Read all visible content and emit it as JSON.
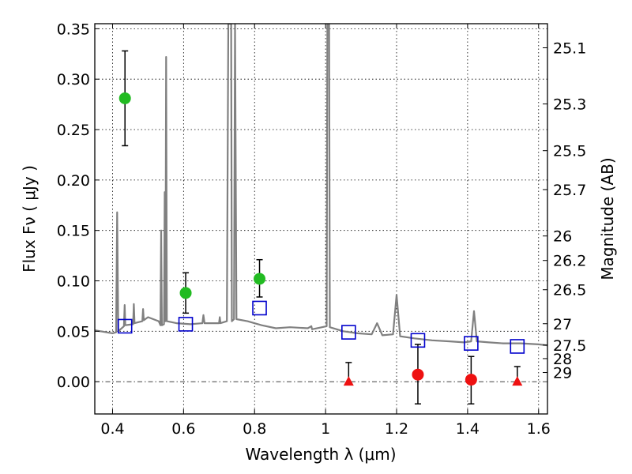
{
  "chart_data": {
    "type": "scatter",
    "title": "",
    "xlabel": "Wavelength  λ (μm)",
    "ylabel": "Flux  Fν  ( μJy )",
    "y2label": "Magnitude (AB)",
    "xlim": [
      0.35,
      1.625
    ],
    "ylim": [
      -0.032,
      0.355
    ],
    "grid": true,
    "legend": "none",
    "x_ticks": [
      0.4,
      0.6,
      0.8,
      1.0,
      1.2,
      1.4,
      1.6
    ],
    "x_tick_labels": [
      "0.4",
      "0.6",
      "0.8",
      "1",
      "1.2",
      "1.4",
      "1.6"
    ],
    "y_ticks": [
      0.0,
      0.05,
      0.1,
      0.15,
      0.2,
      0.25,
      0.3,
      0.35
    ],
    "y_tick_labels": [
      "0.00",
      "0.05",
      "0.10",
      "0.15",
      "0.20",
      "0.25",
      "0.30",
      "0.35"
    ],
    "y2_ticks": [
      {
        "label": "25.1",
        "flux": 0.3311
      },
      {
        "label": "25.3",
        "flux": 0.2754
      },
      {
        "label": "25.5",
        "flux": 0.2291
      },
      {
        "label": "25.7",
        "flux": 0.1905
      },
      {
        "label": "26",
        "flux": 0.1445
      },
      {
        "label": "26.2",
        "flux": 0.1202
      },
      {
        "label": "26.5",
        "flux": 0.0912
      },
      {
        "label": "27",
        "flux": 0.0575
      },
      {
        "label": "27.5",
        "flux": 0.0363
      },
      {
        "label": "28",
        "flux": 0.0229
      },
      {
        "label": "29",
        "flux": 0.0091
      }
    ],
    "colors": {
      "model": "#808080",
      "model_photometry": "#0000cc",
      "detections": "#22bb22",
      "low_snr": "#ee1111",
      "upper_limits": "#ee1111",
      "error_bars": "#000000"
    },
    "series": [
      {
        "marker": "circle",
        "color": "#22bb22",
        "points": [
          {
            "x": 0.435,
            "y": 0.281,
            "ylow": 0.234,
            "yhigh": 0.328
          },
          {
            "x": 0.606,
            "y": 0.088,
            "ylow": 0.068,
            "yhigh": 0.108
          },
          {
            "x": 0.814,
            "y": 0.102,
            "ylow": 0.084,
            "yhigh": 0.121
          }
        ]
      },
      {
        "marker": "circle",
        "color": "#ee1111",
        "points": [
          {
            "x": 1.26,
            "y": 0.007,
            "ylow": -0.022,
            "yhigh": 0.037
          },
          {
            "x": 1.41,
            "y": 0.002,
            "ylow": -0.022,
            "yhigh": 0.025
          }
        ]
      },
      {
        "marker": "triangle",
        "color": "#ee1111",
        "points": [
          {
            "x": 1.065,
            "y": 0.0,
            "ylow": 0.0,
            "yhigh": 0.019
          },
          {
            "x": 1.54,
            "y": 0.0,
            "ylow": 0.0,
            "yhigh": 0.015
          }
        ]
      },
      {
        "marker": "open-square",
        "color": "#0000cc",
        "points": [
          {
            "x": 0.435,
            "y": 0.055
          },
          {
            "x": 0.606,
            "y": 0.057
          },
          {
            "x": 0.814,
            "y": 0.073
          },
          {
            "x": 1.065,
            "y": 0.049
          },
          {
            "x": 1.26,
            "y": 0.041
          },
          {
            "x": 1.41,
            "y": 0.038
          },
          {
            "x": 1.54,
            "y": 0.035
          }
        ]
      },
      {
        "marker": "line",
        "color": "#808080",
        "points": [
          {
            "x": 0.35,
            "y": 0.051
          },
          {
            "x": 0.4,
            "y": 0.048
          },
          {
            "x": 0.41,
            "y": 0.049
          },
          {
            "x": 0.413,
            "y": 0.168
          },
          {
            "x": 0.416,
            "y": 0.05
          },
          {
            "x": 0.432,
            "y": 0.055
          },
          {
            "x": 0.434,
            "y": 0.076
          },
          {
            "x": 0.436,
            "y": 0.056
          },
          {
            "x": 0.458,
            "y": 0.057
          },
          {
            "x": 0.46,
            "y": 0.077
          },
          {
            "x": 0.462,
            "y": 0.058
          },
          {
            "x": 0.484,
            "y": 0.06
          },
          {
            "x": 0.486,
            "y": 0.072
          },
          {
            "x": 0.488,
            "y": 0.061
          },
          {
            "x": 0.5,
            "y": 0.064
          },
          {
            "x": 0.53,
            "y": 0.06
          },
          {
            "x": 0.535,
            "y": 0.056
          },
          {
            "x": 0.537,
            "y": 0.15
          },
          {
            "x": 0.539,
            "y": 0.056
          },
          {
            "x": 0.545,
            "y": 0.057
          },
          {
            "x": 0.547,
            "y": 0.188
          },
          {
            "x": 0.549,
            "y": 0.06
          },
          {
            "x": 0.551,
            "y": 0.322
          },
          {
            "x": 0.553,
            "y": 0.06
          },
          {
            "x": 0.58,
            "y": 0.058
          },
          {
            "x": 0.62,
            "y": 0.057
          },
          {
            "x": 0.653,
            "y": 0.058
          },
          {
            "x": 0.656,
            "y": 0.066
          },
          {
            "x": 0.659,
            "y": 0.058
          },
          {
            "x": 0.7,
            "y": 0.058
          },
          {
            "x": 0.702,
            "y": 0.064
          },
          {
            "x": 0.704,
            "y": 0.058
          },
          {
            "x": 0.722,
            "y": 0.06
          },
          {
            "x": 0.726,
            "y": 0.355
          },
          {
            "x": 0.734,
            "y": 0.355
          },
          {
            "x": 0.736,
            "y": 0.06
          },
          {
            "x": 0.742,
            "y": 0.062
          },
          {
            "x": 0.745,
            "y": 0.355
          },
          {
            "x": 0.749,
            "y": 0.062
          },
          {
            "x": 0.78,
            "y": 0.06
          },
          {
            "x": 0.82,
            "y": 0.056
          },
          {
            "x": 0.86,
            "y": 0.053
          },
          {
            "x": 0.9,
            "y": 0.054
          },
          {
            "x": 0.95,
            "y": 0.053
          },
          {
            "x": 0.96,
            "y": 0.055
          },
          {
            "x": 0.962,
            "y": 0.052
          },
          {
            "x": 0.99,
            "y": 0.054
          },
          {
            "x": 1.003,
            "y": 0.055
          },
          {
            "x": 1.005,
            "y": 0.355
          },
          {
            "x": 1.01,
            "y": 0.355
          },
          {
            "x": 1.012,
            "y": 0.054
          },
          {
            "x": 1.05,
            "y": 0.05
          },
          {
            "x": 1.09,
            "y": 0.048
          },
          {
            "x": 1.13,
            "y": 0.047
          },
          {
            "x": 1.145,
            "y": 0.058
          },
          {
            "x": 1.16,
            "y": 0.046
          },
          {
            "x": 1.19,
            "y": 0.047
          },
          {
            "x": 1.2,
            "y": 0.086
          },
          {
            "x": 1.21,
            "y": 0.045
          },
          {
            "x": 1.25,
            "y": 0.043
          },
          {
            "x": 1.3,
            "y": 0.041
          },
          {
            "x": 1.35,
            "y": 0.04
          },
          {
            "x": 1.39,
            "y": 0.039
          },
          {
            "x": 1.41,
            "y": 0.04
          },
          {
            "x": 1.418,
            "y": 0.07
          },
          {
            "x": 1.426,
            "y": 0.04
          },
          {
            "x": 1.46,
            "y": 0.039
          },
          {
            "x": 1.5,
            "y": 0.038
          },
          {
            "x": 1.55,
            "y": 0.038
          },
          {
            "x": 1.6,
            "y": 0.037
          },
          {
            "x": 1.625,
            "y": 0.036
          }
        ]
      }
    ]
  }
}
